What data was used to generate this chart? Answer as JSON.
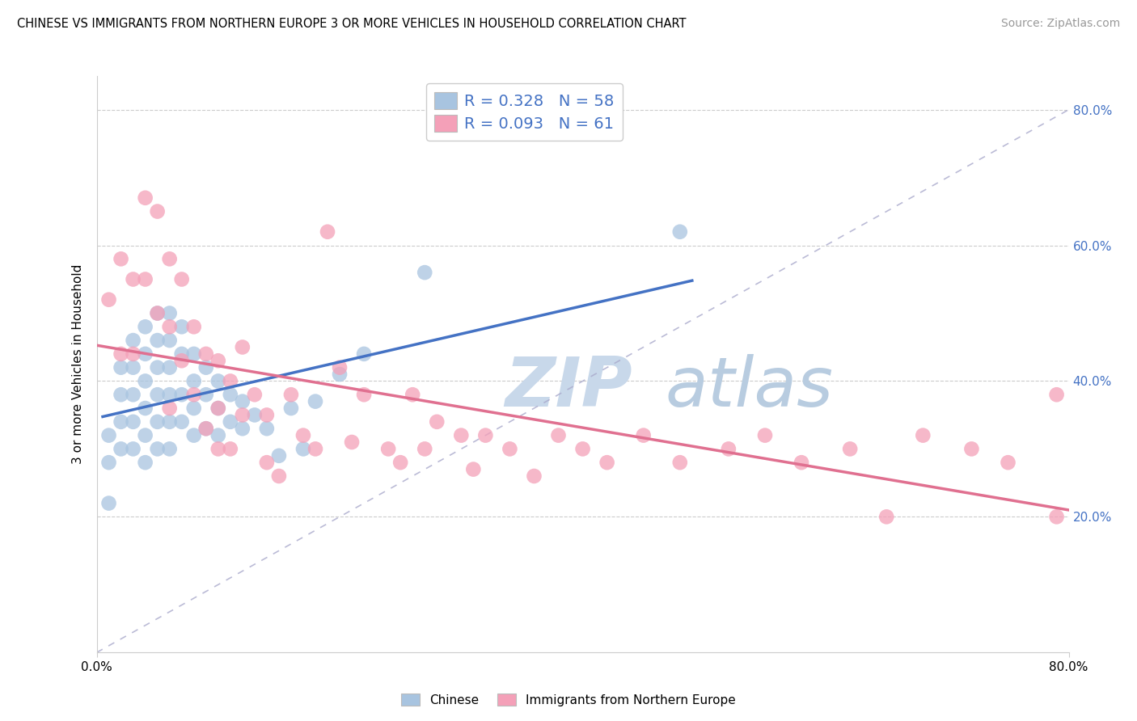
{
  "title": "CHINESE VS IMMIGRANTS FROM NORTHERN EUROPE 3 OR MORE VEHICLES IN HOUSEHOLD CORRELATION CHART",
  "source": "Source: ZipAtlas.com",
  "ylabel": "3 or more Vehicles in Household",
  "x_range": [
    0.0,
    0.8
  ],
  "y_range": [
    0.0,
    0.85
  ],
  "x_ticks": [
    0.0,
    0.8
  ],
  "x_tick_labels": [
    "0.0%",
    "80.0%"
  ],
  "y_ticks": [
    0.2,
    0.4,
    0.6,
    0.8
  ],
  "y_tick_labels": [
    "20.0%",
    "40.0%",
    "60.0%",
    "80.0%"
  ],
  "legend_label1": "Chinese",
  "legend_label2": "Immigrants from Northern Europe",
  "R1": 0.328,
  "N1": 58,
  "R2": 0.093,
  "N2": 61,
  "color_blue": "#a8c4e0",
  "color_pink": "#f4a0b8",
  "line_color_blue": "#4472c4",
  "line_color_pink": "#e07090",
  "watermark_zip_color": "#c8d8ea",
  "watermark_atlas_color": "#b8cce0",
  "grid_color": "#cccccc",
  "blue_x": [
    0.01,
    0.01,
    0.01,
    0.02,
    0.02,
    0.02,
    0.02,
    0.03,
    0.03,
    0.03,
    0.03,
    0.03,
    0.04,
    0.04,
    0.04,
    0.04,
    0.04,
    0.04,
    0.05,
    0.05,
    0.05,
    0.05,
    0.05,
    0.05,
    0.06,
    0.06,
    0.06,
    0.06,
    0.06,
    0.06,
    0.07,
    0.07,
    0.07,
    0.07,
    0.08,
    0.08,
    0.08,
    0.08,
    0.09,
    0.09,
    0.09,
    0.1,
    0.1,
    0.1,
    0.11,
    0.11,
    0.12,
    0.12,
    0.13,
    0.14,
    0.15,
    0.16,
    0.17,
    0.18,
    0.2,
    0.22,
    0.27,
    0.48
  ],
  "blue_y": [
    0.32,
    0.28,
    0.22,
    0.42,
    0.38,
    0.34,
    0.3,
    0.46,
    0.42,
    0.38,
    0.34,
    0.3,
    0.48,
    0.44,
    0.4,
    0.36,
    0.32,
    0.28,
    0.5,
    0.46,
    0.42,
    0.38,
    0.34,
    0.3,
    0.5,
    0.46,
    0.42,
    0.38,
    0.34,
    0.3,
    0.48,
    0.44,
    0.38,
    0.34,
    0.44,
    0.4,
    0.36,
    0.32,
    0.42,
    0.38,
    0.33,
    0.4,
    0.36,
    0.32,
    0.38,
    0.34,
    0.37,
    0.33,
    0.35,
    0.33,
    0.29,
    0.36,
    0.3,
    0.37,
    0.41,
    0.44,
    0.56,
    0.62
  ],
  "pink_x": [
    0.01,
    0.02,
    0.02,
    0.03,
    0.03,
    0.04,
    0.04,
    0.05,
    0.05,
    0.06,
    0.06,
    0.06,
    0.07,
    0.07,
    0.08,
    0.08,
    0.09,
    0.09,
    0.1,
    0.1,
    0.1,
    0.11,
    0.11,
    0.12,
    0.12,
    0.13,
    0.14,
    0.14,
    0.15,
    0.16,
    0.17,
    0.18,
    0.19,
    0.2,
    0.21,
    0.22,
    0.24,
    0.25,
    0.26,
    0.27,
    0.28,
    0.3,
    0.31,
    0.32,
    0.34,
    0.36,
    0.38,
    0.4,
    0.42,
    0.45,
    0.48,
    0.52,
    0.55,
    0.58,
    0.62,
    0.65,
    0.68,
    0.72,
    0.75,
    0.79,
    0.79
  ],
  "pink_y": [
    0.52,
    0.58,
    0.44,
    0.55,
    0.44,
    0.67,
    0.55,
    0.65,
    0.5,
    0.58,
    0.48,
    0.36,
    0.55,
    0.43,
    0.48,
    0.38,
    0.44,
    0.33,
    0.43,
    0.36,
    0.3,
    0.4,
    0.3,
    0.45,
    0.35,
    0.38,
    0.35,
    0.28,
    0.26,
    0.38,
    0.32,
    0.3,
    0.62,
    0.42,
    0.31,
    0.38,
    0.3,
    0.28,
    0.38,
    0.3,
    0.34,
    0.32,
    0.27,
    0.32,
    0.3,
    0.26,
    0.32,
    0.3,
    0.28,
    0.32,
    0.28,
    0.3,
    0.32,
    0.28,
    0.3,
    0.2,
    0.32,
    0.3,
    0.28,
    0.38,
    0.2
  ]
}
